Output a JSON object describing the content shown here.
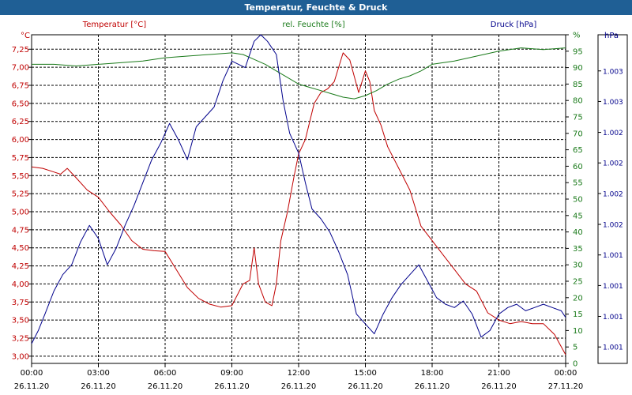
{
  "title": "Temperatur, Feuchte & Druck",
  "colors": {
    "temp": "#c00000",
    "hum": "#1a7a1a",
    "press": "#00008b",
    "titlebar": "#1f5f95"
  },
  "chart_data": {
    "type": "line",
    "x_ticks": [
      {
        "time": "00:00",
        "date": "26.11.20"
      },
      {
        "time": "03:00",
        "date": "26.11.20"
      },
      {
        "time": "06:00",
        "date": "26.11.20"
      },
      {
        "time": "09:00",
        "date": "26.11.20"
      },
      {
        "time": "12:00",
        "date": "26.11.20"
      },
      {
        "time": "15:00",
        "date": "26.11.20"
      },
      {
        "time": "18:00",
        "date": "26.11.20"
      },
      {
        "time": "21:00",
        "date": "26.11.20"
      },
      {
        "time": "00:00",
        "date": "27.11.20"
      }
    ],
    "x_range_hours": [
      0,
      24
    ],
    "axes": {
      "temp": {
        "label": "Temperatur [°C]",
        "unit": "°C",
        "min": 2.9,
        "max": 7.45,
        "ticks": [
          "3,00",
          "3,25",
          "3,50",
          "3,75",
          "4,00",
          "4,25",
          "4,50",
          "4,75",
          "5,00",
          "5,25",
          "5,50",
          "5,75",
          "6,00",
          "6,25",
          "6,50",
          "6,75",
          "7,00",
          "7,25"
        ],
        "tick_values": [
          3.0,
          3.25,
          3.5,
          3.75,
          4.0,
          4.25,
          4.5,
          4.75,
          5.0,
          5.25,
          5.5,
          5.75,
          6.0,
          6.25,
          6.5,
          6.75,
          7.0,
          7.25
        ]
      },
      "hum": {
        "label": "rel. Feuchte [%]",
        "unit": "%",
        "min": 0,
        "max": 100,
        "ticks": [
          "0",
          "5",
          "10",
          "15",
          "20",
          "25",
          "30",
          "35",
          "40",
          "45",
          "50",
          "55",
          "60",
          "65",
          "70",
          "75",
          "80",
          "85",
          "90",
          "95",
          "%"
        ],
        "tick_values": [
          0,
          5,
          10,
          15,
          20,
          25,
          30,
          35,
          40,
          45,
          50,
          55,
          60,
          65,
          70,
          75,
          80,
          85,
          90,
          95,
          100
        ]
      },
      "press": {
        "label": "Druck [hPa]",
        "unit": "hPa",
        "min": 0,
        "max": 1,
        "ticks": [
          "1.001",
          "1.001",
          "1.001",
          "1.001",
          "1.002",
          "1.002",
          "1.002",
          "1.002",
          "1.003",
          "1.003"
        ],
        "tick_values": [
          0.05,
          0.143,
          0.237,
          0.33,
          0.423,
          0.517,
          0.61,
          0.703,
          0.797,
          0.89
        ]
      }
    },
    "grid": true,
    "series": [
      {
        "name": "Temperatur [°C]",
        "axis": "temp",
        "x": [
          0,
          0.5,
          1,
          1.3,
          1.6,
          2,
          2.5,
          3,
          3.5,
          4,
          4.5,
          5,
          5.5,
          6,
          6.5,
          7,
          7.5,
          8,
          8.5,
          9,
          9.5,
          9.8,
          10,
          10.2,
          10.5,
          10.8,
          11,
          11.2,
          11.5,
          11.8,
          12,
          12.3,
          12.7,
          13,
          13.3,
          13.6,
          14,
          14.3,
          14.7,
          15,
          15.2,
          15.4,
          15.7,
          16,
          16.5,
          17,
          17.5,
          18,
          18.5,
          19,
          19.5,
          20,
          20.5,
          21,
          21.5,
          22,
          22.5,
          23,
          23.5,
          24
        ],
        "y": [
          5.62,
          5.6,
          5.55,
          5.52,
          5.6,
          5.47,
          5.3,
          5.2,
          5.0,
          4.82,
          4.6,
          4.48,
          4.46,
          4.45,
          4.2,
          3.95,
          3.8,
          3.72,
          3.68,
          3.7,
          4.0,
          4.05,
          4.5,
          4.0,
          3.75,
          3.7,
          4.0,
          4.6,
          5.0,
          5.5,
          5.8,
          6.0,
          6.5,
          6.65,
          6.7,
          6.8,
          7.2,
          7.1,
          6.65,
          6.95,
          6.8,
          6.4,
          6.2,
          5.9,
          5.6,
          5.3,
          4.8,
          4.6,
          4.4,
          4.2,
          4.0,
          3.9,
          3.6,
          3.5,
          3.45,
          3.48,
          3.45,
          3.45,
          3.3,
          3.02
        ]
      },
      {
        "name": "rel. Feuchte [%]",
        "axis": "hum",
        "x": [
          0,
          1,
          2,
          3,
          4,
          5,
          6,
          7,
          8,
          9,
          9.5,
          10,
          10.5,
          11,
          11.5,
          12,
          12.5,
          13,
          13.5,
          14,
          14.5,
          15,
          15.5,
          16,
          16.5,
          17,
          17.5,
          18,
          19,
          20,
          21,
          22,
          23,
          24
        ],
        "y": [
          91,
          91,
          90.5,
          91,
          91.5,
          92,
          93,
          93.5,
          94,
          94.5,
          94,
          92.5,
          91,
          89,
          87,
          85,
          84,
          83,
          82,
          81,
          80.5,
          81.5,
          83,
          85,
          86.5,
          87.5,
          89,
          91,
          92,
          93.5,
          95,
          96,
          95.5,
          96
        ]
      },
      {
        "name": "Druck [hPa]",
        "axis": "press",
        "x": [
          0,
          0.3,
          0.6,
          1,
          1.4,
          1.8,
          2.2,
          2.6,
          3,
          3.4,
          3.8,
          4.2,
          4.6,
          5,
          5.4,
          5.8,
          6.2,
          6.6,
          7,
          7.4,
          7.8,
          8.2,
          8.6,
          9,
          9.3,
          9.6,
          10,
          10.3,
          10.6,
          11,
          11.3,
          11.6,
          12,
          12.3,
          12.6,
          13,
          13.4,
          13.8,
          14.2,
          14.6,
          15,
          15.4,
          15.8,
          16.2,
          16.6,
          17,
          17.4,
          17.8,
          18.2,
          18.6,
          19,
          19.4,
          19.8,
          20.2,
          20.6,
          21,
          21.4,
          21.8,
          22.2,
          22.6,
          23,
          23.4,
          23.8,
          24
        ],
        "y": [
          0.06,
          0.1,
          0.15,
          0.22,
          0.27,
          0.3,
          0.37,
          0.42,
          0.38,
          0.3,
          0.35,
          0.42,
          0.48,
          0.55,
          0.62,
          0.67,
          0.73,
          0.68,
          0.62,
          0.72,
          0.75,
          0.78,
          0.86,
          0.92,
          0.91,
          0.9,
          0.98,
          1.0,
          0.98,
          0.94,
          0.8,
          0.7,
          0.64,
          0.55,
          0.47,
          0.44,
          0.4,
          0.34,
          0.27,
          0.15,
          0.12,
          0.09,
          0.15,
          0.2,
          0.24,
          0.27,
          0.3,
          0.25,
          0.2,
          0.18,
          0.17,
          0.19,
          0.15,
          0.08,
          0.1,
          0.15,
          0.17,
          0.18,
          0.16,
          0.17,
          0.18,
          0.17,
          0.16,
          0.14
        ]
      }
    ]
  }
}
